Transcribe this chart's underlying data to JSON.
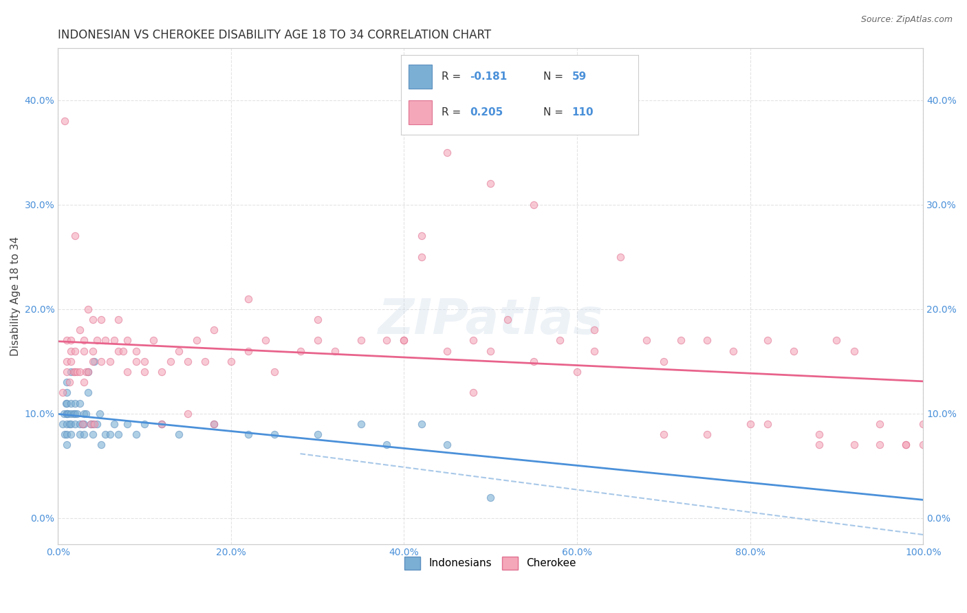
{
  "title": "INDONESIAN VS CHEROKEE DISABILITY AGE 18 TO 34 CORRELATION CHART",
  "source": "Source: ZipAtlas.com",
  "ylabel": "Disability Age 18 to 34",
  "xlim": [
    0.0,
    1.0
  ],
  "ylim": [
    -0.025,
    0.45
  ],
  "x_ticks": [
    0.0,
    0.2,
    0.4,
    0.6,
    0.8,
    1.0
  ],
  "x_tick_labels": [
    "0.0%",
    "20.0%",
    "40.0%",
    "60.0%",
    "80.0%",
    "100.0%"
  ],
  "y_ticks": [
    0.0,
    0.1,
    0.2,
    0.3,
    0.4
  ],
  "y_tick_labels": [
    "0.0%",
    "10.0%",
    "20.0%",
    "30.0%",
    "40.0%"
  ],
  "indonesian_color": "#7BAFD4",
  "cherokee_color": "#F4A7B9",
  "indonesian_edge": "#5B8FBF",
  "cherokee_edge": "#E07090",
  "trendline_indonesian_color": "#4A90D9",
  "trendline_cherokee_color": "#E8638C",
  "trendline_dashed_color": "#A8C8E8",
  "legend_label_indonesian": "Indonesians",
  "legend_label_cherokee": "Cherokee",
  "watermark": "ZIPatlas",
  "indonesian_x": [
    0.005,
    0.007,
    0.008,
    0.009,
    0.01,
    0.01,
    0.01,
    0.01,
    0.01,
    0.01,
    0.01,
    0.01,
    0.012,
    0.013,
    0.015,
    0.015,
    0.015,
    0.015,
    0.015,
    0.018,
    0.02,
    0.02,
    0.02,
    0.022,
    0.025,
    0.025,
    0.025,
    0.028,
    0.03,
    0.03,
    0.03,
    0.032,
    0.035,
    0.035,
    0.038,
    0.04,
    0.04,
    0.042,
    0.045,
    0.048,
    0.05,
    0.055,
    0.06,
    0.065,
    0.07,
    0.08,
    0.09,
    0.1,
    0.12,
    0.14,
    0.18,
    0.22,
    0.25,
    0.3,
    0.35,
    0.38,
    0.42,
    0.45,
    0.5
  ],
  "indonesian_y": [
    0.09,
    0.1,
    0.08,
    0.11,
    0.07,
    0.08,
    0.09,
    0.1,
    0.1,
    0.11,
    0.12,
    0.13,
    0.1,
    0.09,
    0.08,
    0.09,
    0.1,
    0.11,
    0.14,
    0.1,
    0.09,
    0.1,
    0.11,
    0.1,
    0.08,
    0.09,
    0.11,
    0.09,
    0.08,
    0.09,
    0.1,
    0.1,
    0.12,
    0.14,
    0.09,
    0.08,
    0.09,
    0.15,
    0.09,
    0.1,
    0.07,
    0.08,
    0.08,
    0.09,
    0.08,
    0.09,
    0.08,
    0.09,
    0.09,
    0.08,
    0.09,
    0.08,
    0.08,
    0.08,
    0.09,
    0.07,
    0.09,
    0.07,
    0.02
  ],
  "cherokee_x": [
    0.005,
    0.008,
    0.01,
    0.01,
    0.01,
    0.013,
    0.015,
    0.015,
    0.015,
    0.018,
    0.02,
    0.02,
    0.02,
    0.022,
    0.025,
    0.025,
    0.028,
    0.03,
    0.03,
    0.03,
    0.032,
    0.035,
    0.035,
    0.038,
    0.04,
    0.04,
    0.04,
    0.042,
    0.045,
    0.05,
    0.05,
    0.055,
    0.06,
    0.065,
    0.07,
    0.07,
    0.075,
    0.08,
    0.08,
    0.09,
    0.09,
    0.1,
    0.1,
    0.11,
    0.12,
    0.13,
    0.14,
    0.15,
    0.16,
    0.17,
    0.18,
    0.2,
    0.22,
    0.24,
    0.25,
    0.28,
    0.3,
    0.32,
    0.35,
    0.38,
    0.4,
    0.42,
    0.45,
    0.48,
    0.5,
    0.52,
    0.55,
    0.58,
    0.6,
    0.62,
    0.65,
    0.68,
    0.7,
    0.72,
    0.75,
    0.78,
    0.8,
    0.82,
    0.85,
    0.88,
    0.9,
    0.92,
    0.95,
    0.98,
    1.0,
    0.5,
    0.12,
    0.15,
    0.45,
    0.18,
    0.4,
    0.3,
    0.22,
    0.62,
    0.7,
    0.75,
    0.82,
    0.88,
    0.92,
    0.95,
    0.98,
    1.0,
    0.42,
    0.48,
    0.55
  ],
  "cherokee_y": [
    0.12,
    0.38,
    0.14,
    0.15,
    0.17,
    0.13,
    0.15,
    0.16,
    0.17,
    0.14,
    0.14,
    0.16,
    0.27,
    0.14,
    0.14,
    0.18,
    0.09,
    0.13,
    0.16,
    0.17,
    0.14,
    0.14,
    0.2,
    0.09,
    0.15,
    0.16,
    0.19,
    0.09,
    0.17,
    0.15,
    0.19,
    0.17,
    0.15,
    0.17,
    0.16,
    0.19,
    0.16,
    0.14,
    0.17,
    0.16,
    0.15,
    0.14,
    0.15,
    0.17,
    0.14,
    0.15,
    0.16,
    0.15,
    0.17,
    0.15,
    0.18,
    0.15,
    0.16,
    0.17,
    0.14,
    0.16,
    0.17,
    0.16,
    0.17,
    0.17,
    0.17,
    0.25,
    0.16,
    0.12,
    0.16,
    0.19,
    0.15,
    0.17,
    0.14,
    0.16,
    0.25,
    0.17,
    0.15,
    0.17,
    0.17,
    0.16,
    0.09,
    0.17,
    0.16,
    0.08,
    0.17,
    0.16,
    0.09,
    0.07,
    0.07,
    0.32,
    0.09,
    0.1,
    0.35,
    0.09,
    0.17,
    0.19,
    0.21,
    0.18,
    0.08,
    0.08,
    0.09,
    0.07,
    0.07,
    0.07,
    0.07,
    0.09,
    0.27,
    0.17,
    0.3
  ],
  "background_color": "#FFFFFF",
  "grid_color": "#E0E0E0",
  "title_fontsize": 12,
  "axis_label_fontsize": 11,
  "tick_fontsize": 10,
  "marker_size": 55,
  "marker_alpha": 0.6
}
